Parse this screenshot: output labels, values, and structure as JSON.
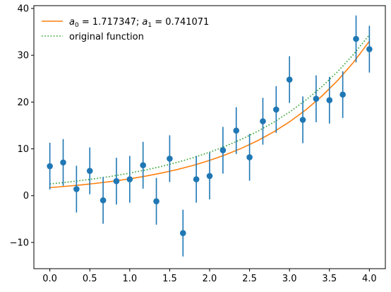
{
  "chart_data": {
    "type": "scatter",
    "title": "",
    "xlabel": "",
    "ylabel": "",
    "xlim": [
      -0.2,
      4.2
    ],
    "ylim": [
      -15.6,
      40.6
    ],
    "x_ticks": [
      0.0,
      0.5,
      1.0,
      1.5,
      2.0,
      2.5,
      3.0,
      3.5,
      4.0
    ],
    "x_tick_labels": [
      "0.0",
      "0.5",
      "1.0",
      "1.5",
      "2.0",
      "2.5",
      "3.0",
      "3.5",
      "4.0"
    ],
    "y_ticks": [
      -10,
      0,
      10,
      20,
      30,
      40
    ],
    "y_tick_labels": [
      "−10",
      "0",
      "10",
      "20",
      "30",
      "40"
    ],
    "grid": false,
    "legend_position": "top-left",
    "legend": {
      "fit_label": {
        "a0_symbol": "a",
        "a0_sub": "0",
        "a0_text": " =  1.717347; ",
        "a1_symbol": "a",
        "a1_sub": "1",
        "a1_text": " =  0.741071"
      },
      "original_label": "original function"
    },
    "colors": {
      "data": "#1f77b4",
      "fit": "#ff7f0e",
      "original": "#2ca02c"
    },
    "series": [
      {
        "kind": "errorbar",
        "x": [
          0.0,
          0.1667,
          0.3333,
          0.5,
          0.6667,
          0.8333,
          1.0,
          1.1667,
          1.3333,
          1.5,
          1.6667,
          1.8333,
          2.0,
          2.1667,
          2.3333,
          2.5,
          2.6667,
          2.8333,
          3.0,
          3.1667,
          3.3333,
          3.5,
          3.6667,
          3.8333,
          4.0
        ],
        "y": [
          6.3,
          7.1,
          1.4,
          5.3,
          -1.0,
          3.1,
          3.5,
          6.5,
          -1.2,
          7.9,
          -8.0,
          3.5,
          4.2,
          9.7,
          13.9,
          8.2,
          15.9,
          18.4,
          24.8,
          16.2,
          20.7,
          20.4,
          21.6,
          33.5,
          31.3
        ],
        "yerr": 5.0
      },
      {
        "kind": "line",
        "style": "solid",
        "x": [
          0.0,
          0.2,
          0.4,
          0.6,
          0.8,
          1.0,
          1.2,
          1.4,
          1.6,
          1.8,
          2.0,
          2.2,
          2.4,
          2.6,
          2.8,
          3.0,
          3.2,
          3.4,
          3.6,
          3.8,
          4.0
        ],
        "y": [
          1.72,
          2.0,
          2.31,
          2.68,
          3.11,
          3.6,
          4.18,
          4.84,
          5.61,
          6.5,
          7.54,
          8.74,
          10.13,
          11.74,
          13.61,
          15.77,
          18.28,
          21.19,
          24.56,
          28.47,
          33.0
        ]
      },
      {
        "kind": "line",
        "style": "dotted",
        "x": [
          0.0,
          0.2,
          0.4,
          0.6,
          0.8,
          1.0,
          1.2,
          1.4,
          1.6,
          1.8,
          2.0,
          2.2,
          2.4,
          2.6,
          2.8,
          3.0,
          3.2,
          3.4,
          3.6,
          3.8,
          4.0
        ],
        "y": [
          2.5,
          2.85,
          3.25,
          3.71,
          4.22,
          4.82,
          5.49,
          6.26,
          7.14,
          8.14,
          9.28,
          10.58,
          12.06,
          13.74,
          15.67,
          17.86,
          20.36,
          23.21,
          26.46,
          30.16,
          34.38
        ]
      }
    ]
  }
}
